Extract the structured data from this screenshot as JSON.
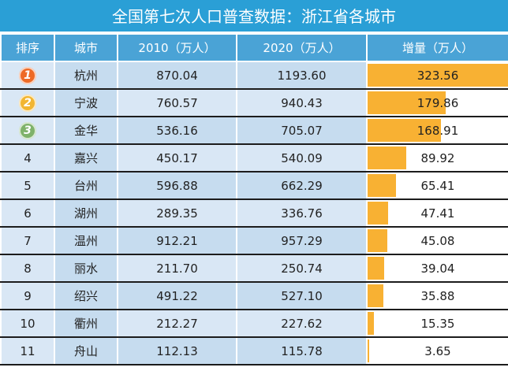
{
  "title": "全国第七次人口普查数据：浙江省各城市",
  "headers": [
    "排序",
    "城市",
    "2010（万人）",
    "2020（万人）",
    "增量（万人）"
  ],
  "badge_colors": [
    "#ee6a26",
    "#f2b632",
    "#7fb26a"
  ],
  "bar_color": "#f8b133",
  "chart_data": {
    "type": "table",
    "columns": [
      "排序",
      "城市",
      "2010（万人）",
      "2020（万人）",
      "增量（万人）"
    ],
    "rows": [
      {
        "rank": "1",
        "city": "杭州",
        "y2010": "870.04",
        "y2020": "1193.60",
        "increase": "323.56",
        "increase_value": 323.56
      },
      {
        "rank": "2",
        "city": "宁波",
        "y2010": "760.57",
        "y2020": "940.43",
        "increase": "179.86",
        "increase_value": 179.86
      },
      {
        "rank": "3",
        "city": "金华",
        "y2010": "536.16",
        "y2020": "705.07",
        "increase": "168.91",
        "increase_value": 168.91
      },
      {
        "rank": "4",
        "city": "嘉兴",
        "y2010": "450.17",
        "y2020": "540.09",
        "increase": "89.92",
        "increase_value": 89.92
      },
      {
        "rank": "5",
        "city": "台州",
        "y2010": "596.88",
        "y2020": "662.29",
        "increase": "65.41",
        "increase_value": 65.41
      },
      {
        "rank": "6",
        "city": "湖州",
        "y2010": "289.35",
        "y2020": "336.76",
        "increase": "47.41",
        "increase_value": 47.41
      },
      {
        "rank": "7",
        "city": "温州",
        "y2010": "912.21",
        "y2020": "957.29",
        "increase": "45.08",
        "increase_value": 45.08
      },
      {
        "rank": "8",
        "city": "丽水",
        "y2010": "211.70",
        "y2020": "250.74",
        "increase": "39.04",
        "increase_value": 39.04
      },
      {
        "rank": "9",
        "city": "绍兴",
        "y2010": "491.22",
        "y2020": "527.10",
        "increase": "35.88",
        "increase_value": 35.88
      },
      {
        "rank": "10",
        "city": "衢州",
        "y2010": "212.27",
        "y2020": "227.62",
        "increase": "15.35",
        "increase_value": 15.35
      },
      {
        "rank": "11",
        "city": "舟山",
        "y2010": "112.13",
        "y2020": "115.78",
        "increase": "3.65",
        "increase_value": 3.65
      }
    ],
    "bar_max": 323.56
  }
}
